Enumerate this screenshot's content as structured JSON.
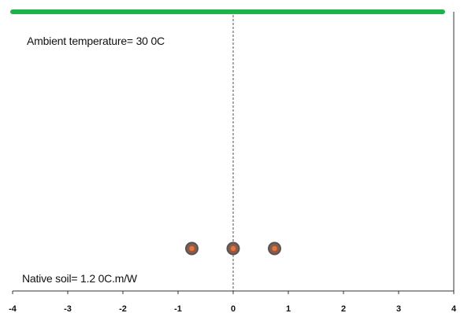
{
  "annotations": {
    "ambient_temperature": "Ambient temperature= 30 0C",
    "native_soil": "Native soil= 1.2 0C.m/W"
  },
  "axis": {
    "x_range": [
      -4,
      4
    ],
    "x_ticks": [
      "-4",
      "-3",
      "-2",
      "-1",
      "0",
      "1",
      "2",
      "3",
      "4"
    ]
  },
  "ground_surface": {
    "color": "#1db34a",
    "x_range": [
      -4,
      3.8
    ]
  },
  "cables": [
    {
      "x": -0.75
    },
    {
      "x": 0
    },
    {
      "x": 0.75
    }
  ],
  "colors": {
    "cable_outer": "#555555",
    "cable_core": "#e8733a",
    "axis": "#333333",
    "centerline": "#555555"
  }
}
